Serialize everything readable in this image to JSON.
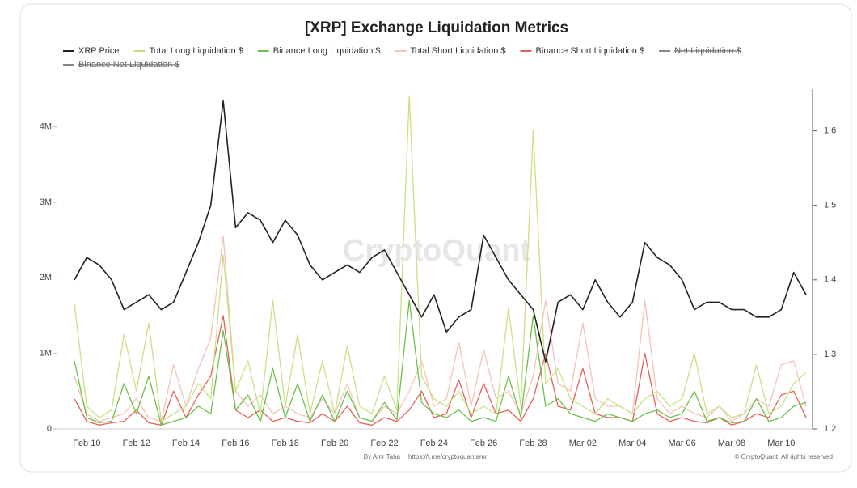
{
  "chart_data": {
    "type": "line",
    "title": "[XRP] Exchange Liquidation Metrics",
    "watermark": "CryptoQuant",
    "footer_author": "By Amr Taha",
    "footer_link": "https://t.me/cryptoquantamr",
    "copyright": "© CryptoQuant. All rights reserved",
    "categories": [
      null,
      "Feb 10",
      null,
      null,
      null,
      "Feb 12",
      null,
      null,
      null,
      "Feb 14",
      null,
      null,
      null,
      "Feb 16",
      null,
      null,
      null,
      "Feb 18",
      null,
      null,
      null,
      "Feb 20",
      null,
      null,
      null,
      "Feb 22",
      null,
      null,
      null,
      "Feb 24",
      null,
      null,
      null,
      "Feb 26",
      null,
      null,
      null,
      "Feb 28",
      null,
      null,
      null,
      "Mar 02",
      null,
      null,
      null,
      "Mar 04",
      null,
      null,
      null,
      "Mar 06",
      null,
      null,
      null,
      "Mar 08",
      null,
      null,
      null,
      "Mar 10",
      null,
      null
    ],
    "ylim": [
      0,
      4500000
    ],
    "yticks": [
      0,
      {
        "value": 1000000,
        "label": "1M"
      },
      {
        "value": 2000000,
        "label": "2M"
      },
      {
        "value": 3000000,
        "label": "3M"
      },
      {
        "value": 4000000,
        "label": "4M"
      }
    ],
    "y2lim": [
      1.2,
      1.656
    ],
    "y2ticks": [
      1.2,
      1.3,
      1.4,
      1.5,
      1.6
    ],
    "series": [
      {
        "name": "XRP Price",
        "color": "#222222",
        "axis": "y2",
        "values": [
          1.4,
          1.43,
          1.42,
          1.4,
          1.36,
          1.37,
          1.38,
          1.36,
          1.37,
          1.41,
          1.45,
          1.5,
          1.64,
          1.47,
          1.49,
          1.48,
          1.45,
          1.48,
          1.46,
          1.42,
          1.4,
          1.41,
          1.42,
          1.41,
          1.43,
          1.44,
          1.41,
          1.38,
          1.35,
          1.38,
          1.33,
          1.35,
          1.36,
          1.46,
          1.43,
          1.4,
          1.38,
          1.36,
          1.29,
          1.37,
          1.38,
          1.36,
          1.4,
          1.37,
          1.35,
          1.37,
          1.45,
          1.43,
          1.42,
          1.4,
          1.36,
          1.37,
          1.37,
          1.36,
          1.36,
          1.35,
          1.35,
          1.36,
          1.41,
          1.38
        ]
      },
      {
        "name": "Total Long Liquidation $",
        "color": "#c5e384",
        "values": [
          1650000,
          300000,
          150000,
          250000,
          1250000,
          500000,
          1400000,
          100000,
          200000,
          300000,
          600000,
          400000,
          2300000,
          500000,
          900000,
          200000,
          1700000,
          300000,
          1250000,
          200000,
          900000,
          200000,
          1100000,
          300000,
          200000,
          700000,
          250000,
          4400000,
          700000,
          400000,
          300000,
          500000,
          200000,
          300000,
          200000,
          1600000,
          300000,
          3950000,
          600000,
          800000,
          400000,
          300000,
          200000,
          400000,
          300000,
          200000,
          400000,
          500000,
          300000,
          400000,
          1000000,
          200000,
          300000,
          150000,
          200000,
          850000,
          200000,
          300000,
          600000,
          750000
        ]
      },
      {
        "name": "Binance Long Liquidation $",
        "color": "#6cc04a",
        "values": [
          900000,
          150000,
          80000,
          100000,
          600000,
          200000,
          700000,
          50000,
          100000,
          150000,
          300000,
          200000,
          1300000,
          250000,
          450000,
          100000,
          800000,
          150000,
          600000,
          100000,
          450000,
          100000,
          500000,
          150000,
          100000,
          350000,
          120000,
          1700000,
          350000,
          200000,
          150000,
          250000,
          100000,
          150000,
          100000,
          700000,
          150000,
          1500000,
          300000,
          400000,
          200000,
          150000,
          100000,
          200000,
          150000,
          100000,
          200000,
          250000,
          150000,
          200000,
          500000,
          100000,
          150000,
          80000,
          100000,
          400000,
          100000,
          150000,
          300000,
          350000
        ]
      },
      {
        "name": "Total Short Liquidation $",
        "color": "#f6c2b8",
        "values": [
          700000,
          200000,
          100000,
          150000,
          200000,
          400000,
          150000,
          100000,
          850000,
          300000,
          800000,
          1200000,
          2550000,
          500000,
          300000,
          450000,
          200000,
          300000,
          200000,
          150000,
          400000,
          200000,
          600000,
          150000,
          100000,
          300000,
          200000,
          500000,
          900000,
          300000,
          400000,
          1150000,
          300000,
          1050000,
          400000,
          500000,
          200000,
          700000,
          1700000,
          600000,
          500000,
          1400000,
          400000,
          300000,
          300000,
          200000,
          1700000,
          400000,
          200000,
          300000,
          200000,
          150000,
          300000,
          100000,
          200000,
          400000,
          300000,
          850000,
          900000,
          300000
        ]
      },
      {
        "name": "Binance Short Liquidation $",
        "color": "#e8605a",
        "values": [
          400000,
          100000,
          50000,
          80000,
          100000,
          250000,
          80000,
          50000,
          500000,
          150000,
          450000,
          700000,
          1500000,
          250000,
          150000,
          250000,
          100000,
          150000,
          100000,
          80000,
          200000,
          100000,
          300000,
          80000,
          50000,
          150000,
          100000,
          250000,
          500000,
          150000,
          200000,
          650000,
          150000,
          600000,
          200000,
          250000,
          100000,
          400000,
          1000000,
          300000,
          250000,
          800000,
          200000,
          150000,
          150000,
          100000,
          1000000,
          200000,
          100000,
          150000,
          100000,
          80000,
          150000,
          50000,
          100000,
          200000,
          150000,
          450000,
          500000,
          150000
        ]
      },
      {
        "name": "Net Liquidation $",
        "color": "#888888",
        "visible": false
      },
      {
        "name": "Binance Net Liquidation $",
        "color": "#888888",
        "visible": false
      }
    ]
  }
}
